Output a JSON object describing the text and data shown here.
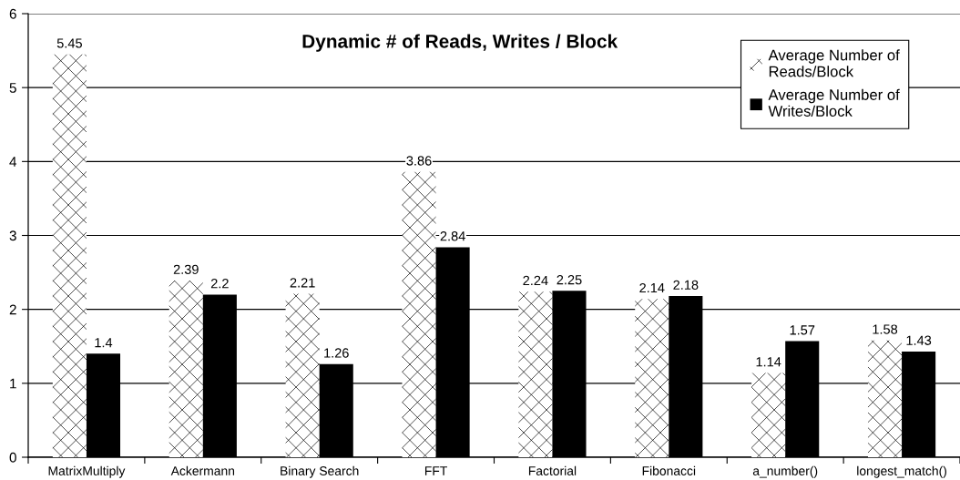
{
  "chart_data": {
    "type": "bar",
    "title": "Dynamic # of Reads, Writes / Block",
    "categories": [
      "MatrixMultiply",
      "Ackermann",
      "Binary Search",
      "FFT",
      "Factorial",
      "Fibonacci",
      "a_number()",
      "longest_match()"
    ],
    "series": [
      {
        "name": "Average Number of\nReads/Block",
        "color": "#ffffff",
        "values": [
          5.45,
          2.39,
          2.21,
          3.86,
          2.24,
          2.14,
          1.14,
          1.58
        ]
      },
      {
        "name": "Average Number of\nWrites/Block",
        "color": "#000000",
        "values": [
          1.4,
          2.2,
          1.26,
          2.84,
          2.25,
          2.18,
          1.57,
          1.43
        ]
      }
    ],
    "ylim": [
      0,
      6
    ],
    "yticks": [
      0,
      1,
      2,
      3,
      4,
      5,
      6
    ],
    "grid": "y",
    "legend": "top right",
    "data_labels": true
  }
}
